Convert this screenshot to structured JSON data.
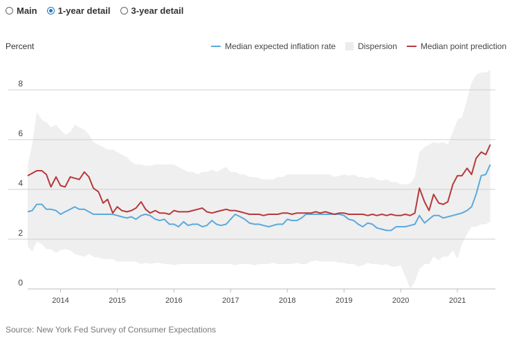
{
  "controls": {
    "options": [
      {
        "label": "Main",
        "selected": false
      },
      {
        "label": "1-year detail",
        "selected": true
      },
      {
        "label": "3-year detail",
        "selected": false
      }
    ]
  },
  "colors": {
    "median_expected": "#5aa9dc",
    "dispersion": "#efefef",
    "median_point": "#b7373a",
    "radio_selected": "#1a73c8"
  },
  "source": "Source: New York Fed Survey of Consumer Expectations",
  "chart_data": {
    "type": "line",
    "title": "",
    "ylabel": "Percent",
    "xlabel": "",
    "ylim": [
      0,
      9
    ],
    "xlim": [
      2013.42,
      2021.67
    ],
    "y_ticks": [
      0,
      2,
      4,
      6,
      8
    ],
    "x_ticks": [
      "2014",
      "2015",
      "2016",
      "2017",
      "2018",
      "2019",
      "2020",
      "2021"
    ],
    "legend": [
      "Median expected inflation rate",
      "Dispersion",
      "Median point prediction"
    ],
    "x": [
      2013.42,
      2013.5,
      2013.58,
      2013.67,
      2013.75,
      2013.83,
      2013.92,
      2014.0,
      2014.08,
      2014.17,
      2014.25,
      2014.33,
      2014.42,
      2014.5,
      2014.58,
      2014.67,
      2014.75,
      2014.83,
      2014.92,
      2015.0,
      2015.08,
      2015.17,
      2015.25,
      2015.33,
      2015.42,
      2015.5,
      2015.58,
      2015.67,
      2015.75,
      2015.83,
      2015.92,
      2016.0,
      2016.08,
      2016.17,
      2016.25,
      2016.33,
      2016.42,
      2016.5,
      2016.58,
      2016.67,
      2016.75,
      2016.83,
      2016.92,
      2017.0,
      2017.08,
      2017.17,
      2017.25,
      2017.33,
      2017.42,
      2017.5,
      2017.58,
      2017.67,
      2017.75,
      2017.83,
      2017.92,
      2018.0,
      2018.08,
      2018.17,
      2018.25,
      2018.33,
      2018.42,
      2018.5,
      2018.58,
      2018.67,
      2018.75,
      2018.83,
      2018.92,
      2019.0,
      2019.08,
      2019.17,
      2019.25,
      2019.33,
      2019.42,
      2019.5,
      2019.58,
      2019.67,
      2019.75,
      2019.83,
      2019.92,
      2020.0,
      2020.08,
      2020.17,
      2020.25,
      2020.33,
      2020.42,
      2020.5,
      2020.58,
      2020.67,
      2020.75,
      2020.83,
      2020.92,
      2021.0,
      2021.08,
      2021.17,
      2021.25,
      2021.33,
      2021.42,
      2021.5,
      2021.58
    ],
    "series": [
      {
        "name": "Median expected inflation rate",
        "values": [
          3.1,
          3.15,
          3.4,
          3.4,
          3.2,
          3.2,
          3.15,
          3.0,
          3.1,
          3.2,
          3.3,
          3.2,
          3.2,
          3.1,
          3.0,
          3.0,
          3.0,
          3.0,
          3.0,
          2.95,
          2.9,
          2.85,
          2.9,
          2.8,
          2.95,
          3.0,
          2.95,
          2.8,
          2.75,
          2.8,
          2.6,
          2.6,
          2.5,
          2.7,
          2.55,
          2.6,
          2.6,
          2.5,
          2.55,
          2.75,
          2.6,
          2.55,
          2.6,
          2.8,
          3.0,
          2.9,
          2.8,
          2.65,
          2.6,
          2.6,
          2.55,
          2.5,
          2.55,
          2.6,
          2.6,
          2.8,
          2.75,
          2.75,
          2.85,
          3.0,
          3.0,
          3.0,
          3.0,
          3.0,
          3.0,
          3.0,
          3.0,
          2.95,
          2.8,
          2.75,
          2.6,
          2.5,
          2.65,
          2.6,
          2.45,
          2.4,
          2.35,
          2.35,
          2.5,
          2.5,
          2.5,
          2.55,
          2.6,
          2.95,
          2.65,
          2.8,
          2.95,
          2.95,
          2.85,
          2.9,
          2.95,
          3.0,
          3.05,
          3.15,
          3.3,
          3.8,
          4.55,
          4.6,
          5.0
        ]
      },
      {
        "name": "Median point prediction",
        "values": [
          4.55,
          4.65,
          4.75,
          4.75,
          4.6,
          4.1,
          4.5,
          4.15,
          4.1,
          4.5,
          4.45,
          4.4,
          4.7,
          4.5,
          4.05,
          3.9,
          3.45,
          3.6,
          3.05,
          3.3,
          3.15,
          3.1,
          3.15,
          3.25,
          3.5,
          3.2,
          3.05,
          3.15,
          3.05,
          3.05,
          3.0,
          3.15,
          3.1,
          3.1,
          3.1,
          3.15,
          3.2,
          3.25,
          3.1,
          3.05,
          3.1,
          3.15,
          3.2,
          3.15,
          3.15,
          3.1,
          3.05,
          3.0,
          3.0,
          3.0,
          2.95,
          3.0,
          3.0,
          3.0,
          3.05,
          3.05,
          3.0,
          3.05,
          3.05,
          3.05,
          3.05,
          3.1,
          3.05,
          3.1,
          3.05,
          3.0,
          3.05,
          3.05,
          3.0,
          3.0,
          3.0,
          3.0,
          2.95,
          3.0,
          2.95,
          3.0,
          2.95,
          3.0,
          2.95,
          2.95,
          3.0,
          2.95,
          3.05,
          4.05,
          3.5,
          3.15,
          3.8,
          3.45,
          3.4,
          3.5,
          4.2,
          4.55,
          4.55,
          4.85,
          4.6,
          5.25,
          5.5,
          5.4,
          5.8
        ]
      },
      {
        "name": "Dispersion",
        "upper": [
          5.0,
          5.8,
          7.1,
          6.8,
          6.7,
          6.5,
          6.6,
          6.4,
          6.2,
          6.3,
          6.6,
          6.5,
          6.4,
          6.2,
          5.9,
          5.8,
          5.7,
          5.6,
          5.6,
          5.5,
          5.4,
          5.3,
          5.1,
          5.0,
          5.0,
          4.95,
          4.95,
          5.0,
          5.0,
          5.0,
          5.0,
          5.0,
          4.9,
          4.8,
          4.7,
          4.7,
          4.6,
          4.7,
          4.7,
          4.8,
          4.7,
          4.8,
          4.9,
          4.7,
          4.7,
          4.6,
          4.6,
          4.5,
          4.5,
          4.45,
          4.4,
          4.4,
          4.4,
          4.5,
          4.5,
          4.6,
          4.6,
          4.6,
          4.6,
          4.6,
          4.6,
          4.6,
          4.6,
          4.6,
          4.6,
          4.5,
          4.55,
          4.6,
          4.55,
          4.6,
          4.5,
          4.5,
          4.45,
          4.5,
          4.4,
          4.35,
          4.4,
          4.3,
          4.3,
          4.2,
          4.2,
          4.25,
          4.5,
          5.5,
          5.7,
          5.8,
          5.9,
          5.85,
          5.9,
          5.8,
          6.3,
          6.8,
          6.9,
          7.6,
          8.3,
          8.6,
          8.7,
          8.7,
          8.8
        ],
        "lower": [
          1.7,
          1.5,
          1.9,
          1.8,
          1.6,
          1.6,
          1.45,
          1.55,
          1.6,
          1.55,
          1.4,
          1.35,
          1.3,
          1.4,
          1.3,
          1.25,
          1.2,
          1.2,
          1.2,
          1.1,
          1.1,
          1.1,
          1.1,
          1.1,
          1.0,
          1.05,
          1.0,
          1.05,
          1.05,
          1.0,
          1.0,
          0.95,
          1.0,
          1.0,
          1.0,
          1.0,
          1.0,
          1.0,
          1.0,
          1.0,
          1.0,
          1.0,
          1.0,
          1.0,
          0.95,
          1.0,
          1.0,
          1.0,
          0.95,
          1.0,
          1.0,
          1.0,
          1.05,
          1.0,
          1.0,
          1.0,
          1.0,
          1.05,
          1.0,
          1.0,
          1.1,
          1.15,
          1.1,
          1.1,
          1.1,
          1.1,
          1.05,
          1.05,
          1.0,
          1.0,
          0.9,
          0.95,
          1.05,
          1.0,
          1.0,
          0.95,
          1.0,
          0.9,
          0.9,
          0.95,
          0.5,
          0.0,
          0.3,
          0.8,
          1.0,
          1.0,
          1.3,
          1.15,
          1.3,
          1.3,
          1.55,
          1.2,
          1.8,
          2.2,
          2.5,
          2.5,
          2.6,
          2.6,
          2.7
        ]
      }
    ]
  }
}
